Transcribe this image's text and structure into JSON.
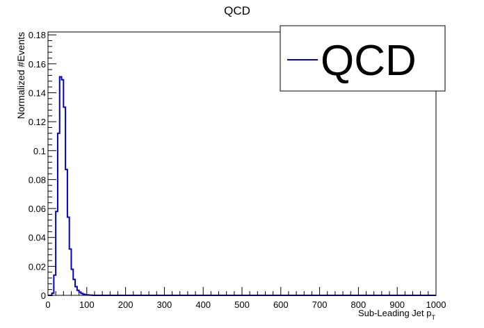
{
  "chart_data": {
    "type": "line",
    "title": "QCD",
    "xlabel": "Sub-Leading Jet p",
    "xlabel_subscript": "T",
    "ylabel": "Normalized #Events",
    "xlim": [
      0,
      1000
    ],
    "ylim": [
      0,
      0.182
    ],
    "x_ticks": [
      0,
      100,
      200,
      300,
      400,
      500,
      600,
      700,
      800,
      900,
      1000
    ],
    "y_ticks": [
      0,
      0.02,
      0.04,
      0.06,
      0.08,
      0.1,
      0.12,
      0.14,
      0.16,
      0.18
    ],
    "y_tick_labels": [
      "0",
      "0.02",
      "0.04",
      "0.06",
      "0.08",
      "0.1",
      "0.12",
      "0.14",
      "0.16",
      "0.18"
    ],
    "grid": false,
    "legend_position": "top-right",
    "bin_width": 5,
    "series": [
      {
        "name": "QCD",
        "color": "#0000cc",
        "style": "histogram-step",
        "bin_edges_start": 0,
        "values": [
          0,
          0,
          0.0015,
          0.014,
          0.058,
          0.112,
          0.151,
          0.149,
          0.13,
          0.087,
          0.054,
          0.032,
          0.018,
          0.011,
          0.006,
          0.0035,
          0.0022,
          0.0013,
          0.0008,
          0.0005,
          0.0003,
          0.0002,
          0.0001
        ]
      }
    ]
  }
}
